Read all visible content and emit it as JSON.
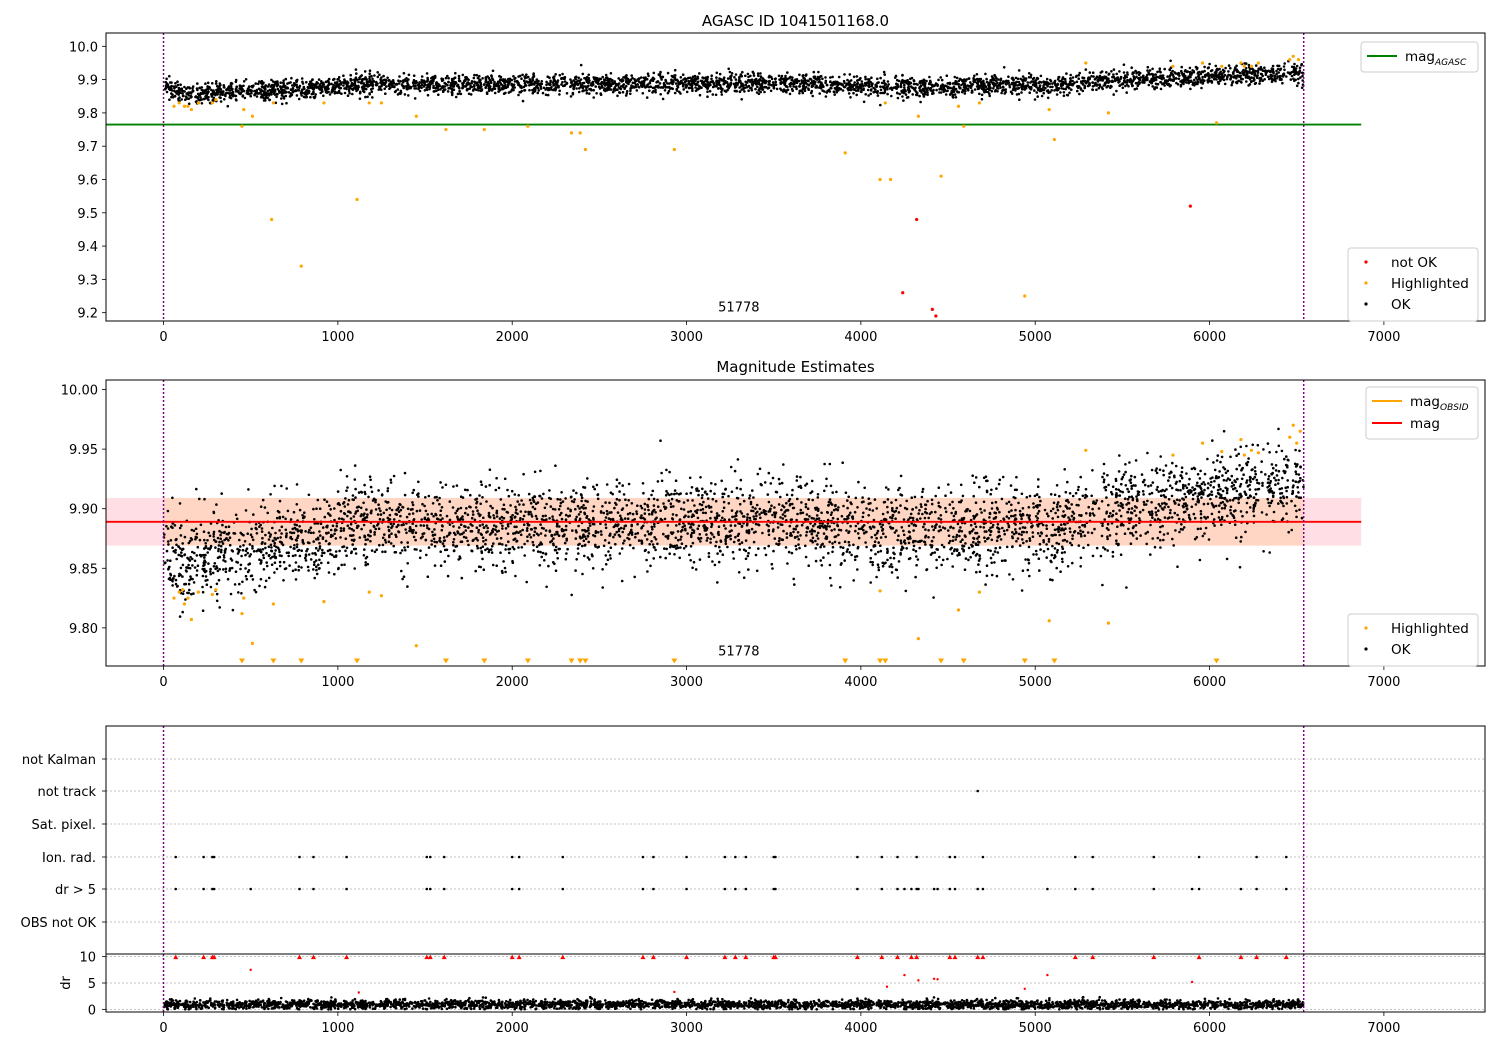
{
  "chart_data": [
    {
      "type": "scatter",
      "title": "AGASC ID 1041501168.0",
      "xlim": [
        -330,
        7580
      ],
      "ylim": [
        9.175,
        10.04
      ],
      "xticks": [
        0,
        1000,
        2000,
        3000,
        4000,
        5000,
        6000,
        7000
      ],
      "xtick_labels": [
        "0",
        "1000",
        "2000",
        "3000",
        "4000",
        "5000",
        "6000",
        "7000"
      ],
      "yticks": [
        9.2,
        9.3,
        9.4,
        9.5,
        9.6,
        9.7,
        9.8,
        9.9,
        10.0
      ],
      "ytick_labels": [
        "9.2",
        "9.3",
        "9.4",
        "9.5",
        "9.6",
        "9.7",
        "9.8",
        "9.9",
        "10.0"
      ],
      "annotation": {
        "text": "51778",
        "x": 3300,
        "y": 9.2
      },
      "vlines": [
        0,
        6540
      ],
      "hline": {
        "name": "mag_AGASC",
        "y": 9.765,
        "x_end": 6870,
        "color": "#008000"
      },
      "legend_upper": {
        "placement": "top-right",
        "items": [
          {
            "label": "mag",
            "sub": "AGASC",
            "color": "#008000",
            "kind": "line"
          }
        ]
      },
      "legend_lower": {
        "placement": "bottom-right",
        "items": [
          {
            "label": "not OK",
            "color": "#ff0000",
            "kind": "dot"
          },
          {
            "label": "Highlighted",
            "color": "#ffa500",
            "kind": "dot"
          },
          {
            "label": "OK",
            "color": "#000000",
            "kind": "dot"
          }
        ]
      },
      "series": [
        {
          "name": "not OK",
          "color": "#ff0000",
          "x": [
            4320,
            4240,
            4410,
            4430,
            5890
          ],
          "y": [
            9.48,
            9.26,
            9.21,
            9.19,
            9.52
          ]
        },
        {
          "name": "Highlighted",
          "color": "#ffa500",
          "x": [
            60,
            90,
            120,
            140,
            160,
            200,
            280,
            300,
            450,
            460,
            510,
            620,
            630,
            790,
            920,
            1110,
            1180,
            1250,
            1450,
            1620,
            1840,
            2090,
            2340,
            2390,
            2420,
            2930,
            3910,
            4110,
            4140,
            4170,
            4330,
            4460,
            4560,
            4590,
            4680,
            4940,
            5080,
            5110,
            5290,
            5420,
            5790,
            5960,
            6040,
            6070,
            6180,
            6200,
            6240,
            6280,
            6460,
            6480,
            6510
          ],
          "y": [
            9.82,
            9.83,
            9.82,
            9.82,
            9.81,
            9.83,
            9.83,
            9.84,
            9.76,
            9.81,
            9.79,
            9.48,
            9.83,
            9.34,
            9.83,
            9.54,
            9.83,
            9.83,
            9.79,
            9.75,
            9.75,
            9.76,
            9.74,
            9.74,
            9.69,
            9.69,
            9.68,
            9.6,
            9.83,
            9.6,
            9.79,
            9.61,
            9.82,
            9.76,
            9.83,
            9.25,
            9.81,
            9.72,
            9.95,
            9.8,
            9.94,
            9.95,
            9.77,
            9.94,
            9.95,
            9.94,
            9.94,
            9.95,
            9.96,
            9.97,
            9.96
          ]
        },
        {
          "name": "OK",
          "color": "#000000",
          "trend": [
            [
              0,
              9.89
            ],
            [
              60,
              9.86
            ],
            [
              150,
              9.855
            ],
            [
              250,
              9.86
            ],
            [
              400,
              9.865
            ],
            [
              600,
              9.87
            ],
            [
              900,
              9.875
            ],
            [
              1000,
              9.88
            ],
            [
              1100,
              9.89
            ],
            [
              1500,
              9.885
            ],
            [
              2000,
              9.885
            ],
            [
              2500,
              9.885
            ],
            [
              3000,
              9.89
            ],
            [
              3500,
              9.89
            ],
            [
              4000,
              9.88
            ],
            [
              4500,
              9.88
            ],
            [
              5000,
              9.885
            ],
            [
              5100,
              9.875
            ],
            [
              5200,
              9.89
            ],
            [
              5500,
              9.9
            ],
            [
              5800,
              9.905
            ],
            [
              6000,
              9.91
            ],
            [
              6200,
              9.915
            ],
            [
              6540,
              9.92
            ]
          ],
          "spread": 0.015,
          "n_points": 3800,
          "x_range": [
            0,
            6540
          ]
        }
      ]
    },
    {
      "type": "scatter",
      "title": "Magnitude Estimates",
      "xlim": [
        -330,
        7580
      ],
      "ylim": [
        9.768,
        10.008
      ],
      "xticks": [
        0,
        1000,
        2000,
        3000,
        4000,
        5000,
        6000,
        7000
      ],
      "xtick_labels": [
        "0",
        "1000",
        "2000",
        "3000",
        "4000",
        "5000",
        "6000",
        "7000"
      ],
      "yticks": [
        9.8,
        9.85,
        9.9,
        9.95,
        10.0
      ],
      "ytick_labels": [
        "9.80",
        "9.85",
        "9.90",
        "9.95",
        "10.00"
      ],
      "annotation": {
        "text": "51778",
        "x": 3300,
        "y": 9.78
      },
      "vlines": [
        0,
        6540
      ],
      "mag": {
        "y": 9.889,
        "band": [
          9.869,
          9.909
        ],
        "x_end": 6870,
        "color": "#ff0000"
      },
      "obsid_band": {
        "y0": 9.869,
        "y1": 9.909,
        "x_end": 6540
      },
      "legend_upper": {
        "placement": "top-right",
        "items": [
          {
            "label": "mag",
            "sub": "OBSID",
            "color": "#ffa500",
            "kind": "line"
          },
          {
            "label": "mag",
            "color": "#ff0000",
            "kind": "line"
          }
        ]
      },
      "legend_lower": {
        "placement": "bottom-right",
        "items": [
          {
            "label": "Highlighted",
            "color": "#ffa500",
            "kind": "dot"
          },
          {
            "label": "OK",
            "color": "#000000",
            "kind": "dot"
          }
        ]
      },
      "clipped_x": [
        450,
        630,
        790,
        1110,
        1620,
        1840,
        2090,
        2340,
        2390,
        2420,
        2930,
        3910,
        4110,
        4140,
        4460,
        4590,
        4940,
        5110,
        6040
      ],
      "series": [
        {
          "name": "Highlighted",
          "color": "#ffa500",
          "x": [
            60,
            90,
            110,
            120,
            140,
            160,
            200,
            280,
            300,
            450,
            460,
            510,
            630,
            920,
            1180,
            1250,
            1450,
            4110,
            4330,
            4560,
            4680,
            5080,
            5290,
            5420,
            5790,
            5960,
            6070,
            6180,
            6200,
            6240,
            6280,
            6460,
            6480,
            6500,
            6520
          ],
          "y": [
            9.825,
            9.83,
            9.832,
            9.82,
            9.825,
            9.807,
            9.83,
            9.828,
            9.832,
            9.812,
            9.825,
            9.787,
            9.82,
            9.822,
            9.83,
            9.827,
            9.785,
            9.831,
            9.791,
            9.815,
            9.83,
            9.806,
            9.949,
            9.804,
            9.945,
            9.955,
            9.948,
            9.958,
            9.945,
            9.949,
            9.947,
            9.96,
            9.97,
            9.955,
            9.965
          ]
        },
        {
          "name": "OK",
          "color": "#000000",
          "trend": [
            [
              0,
              9.875
            ],
            [
              60,
              9.86
            ],
            [
              150,
              9.855
            ],
            [
              250,
              9.862
            ],
            [
              400,
              9.865
            ],
            [
              600,
              9.87
            ],
            [
              900,
              9.875
            ],
            [
              1000,
              9.88
            ],
            [
              1100,
              9.89
            ],
            [
              1500,
              9.885
            ],
            [
              2000,
              9.885
            ],
            [
              2500,
              9.887
            ],
            [
              3000,
              9.89
            ],
            [
              3500,
              9.89
            ],
            [
              4000,
              9.882
            ],
            [
              4500,
              9.88
            ],
            [
              5000,
              9.885
            ],
            [
              5100,
              9.875
            ],
            [
              5200,
              9.893
            ],
            [
              5500,
              9.9
            ],
            [
              5800,
              9.905
            ],
            [
              6000,
              9.91
            ],
            [
              6200,
              9.915
            ],
            [
              6540,
              9.92
            ]
          ],
          "spread": 0.018,
          "n_points": 3800,
          "x_range": [
            0,
            6540
          ]
        }
      ]
    },
    {
      "type": "scatter",
      "title": "",
      "xlim": [
        -330,
        7580
      ],
      "xticks": [
        0,
        1000,
        2000,
        3000,
        4000,
        5000,
        6000,
        7000
      ],
      "xtick_labels": [
        "0",
        "1000",
        "2000",
        "3000",
        "4000",
        "5000",
        "6000",
        "7000"
      ],
      "vlines": [
        0,
        6540
      ],
      "categories": [
        "not Kalman",
        "not track",
        "Sat. pixel.",
        "Ion. rad.",
        "dr > 5",
        "OBS not OK"
      ],
      "flags": {
        "not Kalman": [],
        "not track": [
          4670
        ],
        "Sat. pixel.": [],
        "Ion. rad.": [
          70,
          230,
          280,
          290,
          780,
          860,
          1050,
          1510,
          1530,
          1610,
          2000,
          2040,
          2290,
          2750,
          2810,
          3000,
          3220,
          3280,
          3340,
          3500,
          3510,
          3980,
          4120,
          4210,
          4320,
          4510,
          4540,
          4700,
          5230,
          5330,
          5680,
          5940,
          6270,
          6440
        ],
        "dr > 5": [
          70,
          230,
          280,
          290,
          500,
          780,
          860,
          1050,
          1510,
          1530,
          1610,
          2000,
          2040,
          2290,
          2750,
          2810,
          3000,
          3220,
          3280,
          3340,
          3500,
          3510,
          3980,
          4120,
          4210,
          4250,
          4290,
          4320,
          4330,
          4420,
          4440,
          4510,
          4540,
          4670,
          4700,
          5070,
          5230,
          5330,
          5680,
          5900,
          5940,
          6180,
          6270,
          6440
        ],
        "OBS not OK": []
      },
      "dr": {
        "ylabel": "dr",
        "ylim": [
          -0.5,
          10.5
        ],
        "yticks": [
          0,
          5,
          10
        ],
        "ytick_labels": [
          "0",
          "5",
          "10"
        ],
        "outliers_red": {
          "x": [
            500,
            1120,
            2930,
            4150,
            4250,
            4330,
            4420,
            4440,
            4940,
            5070,
            5900
          ],
          "y": [
            7.5,
            3.2,
            3.3,
            4.3,
            6.5,
            5.5,
            5.8,
            5.7,
            3.9,
            6.5,
            5.2
          ]
        },
        "capped_red_x": [
          70,
          230,
          280,
          290,
          780,
          860,
          1050,
          1510,
          1530,
          1610,
          2000,
          2040,
          2290,
          2750,
          2810,
          3000,
          3220,
          3280,
          3340,
          3500,
          3510,
          3980,
          4120,
          4210,
          4290,
          4320,
          4510,
          4540,
          4670,
          4700,
          5230,
          5330,
          5680,
          5940,
          6180,
          6270,
          6440
        ],
        "baseline": {
          "mean": 0.9,
          "spread": 0.45,
          "n_points": 3400,
          "x_range": [
            0,
            6540
          ]
        }
      }
    }
  ]
}
